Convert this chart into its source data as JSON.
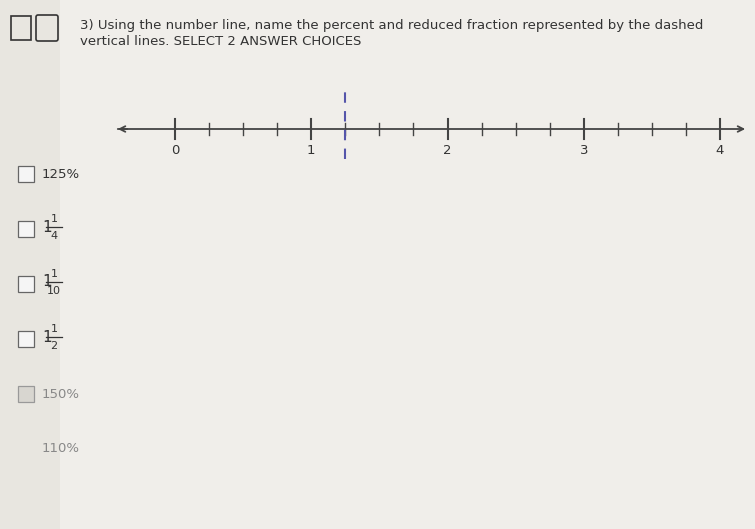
{
  "title_line1": "3) Using the number line, name the percent and reduced fraction represented by the dashed",
  "title_line2": "vertical lines. SELECT 2 ANSWER CHOICES",
  "tick_positions": [
    0,
    1,
    2,
    3,
    4
  ],
  "tick_labels": [
    "0",
    "1",
    "2",
    "3",
    "4"
  ],
  "minor_tick_positions": [
    0.25,
    0.5,
    0.75,
    1.25,
    1.5,
    1.75,
    2.25,
    2.5,
    2.75,
    3.25,
    3.5,
    3.75
  ],
  "dashed_line_x": 1.25,
  "choices": [
    {
      "label": "125%",
      "has_frac": false
    },
    {
      "label": "1",
      "has_frac": true,
      "num": "1",
      "den": "4"
    },
    {
      "label": "1",
      "has_frac": true,
      "num": "1",
      "den": "10"
    },
    {
      "label": "1",
      "has_frac": true,
      "num": "1",
      "den": "2"
    },
    {
      "label": "150%",
      "has_frac": false,
      "faded": true
    },
    {
      "label": "110%",
      "has_frac": false,
      "faded": true,
      "no_checkbox": true
    }
  ],
  "background_color": "#e8e6e0",
  "panel_color": "#f0eeea",
  "number_line_color": "#444444",
  "dashed_line_color": "#5555aa",
  "text_color": "#333333",
  "faded_text_color": "#888888",
  "checkbox_facecolor": "#f5f5f5",
  "checkbox_edgecolor": "#666666"
}
